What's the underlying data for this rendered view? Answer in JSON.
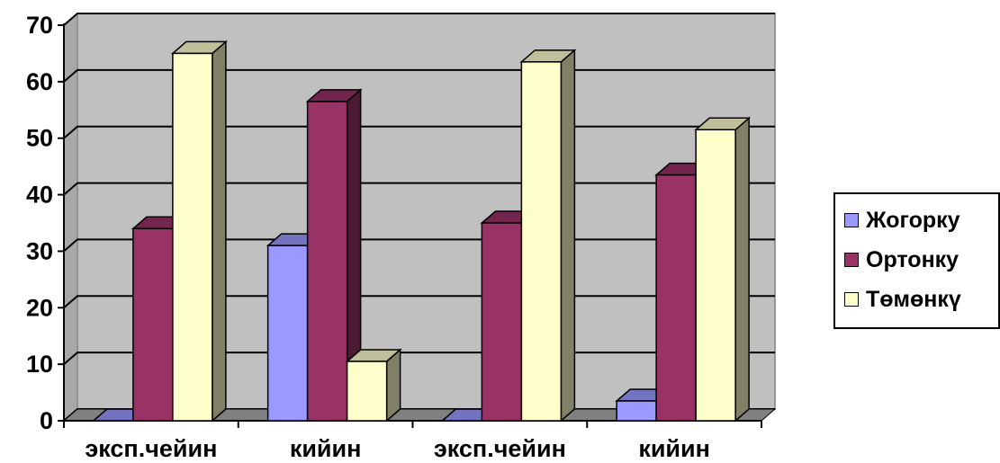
{
  "chart_data": {
    "type": "bar",
    "categories": [
      "эксп.чейин",
      "кийин",
      "эксп.чейин",
      "кийин"
    ],
    "series": [
      {
        "name": "Жогорку",
        "values": [
          0,
          31,
          0,
          3.5
        ],
        "color": "#9999ff"
      },
      {
        "name": "Ортонку",
        "values": [
          34,
          56.5,
          35,
          43.5
        ],
        "color": "#993366"
      },
      {
        "name": "Төмөнкү",
        "values": [
          65,
          10.5,
          63.5,
          51.5
        ],
        "color": "#ffffcc"
      }
    ],
    "ylim": [
      0,
      70
    ],
    "yticks": [
      "0",
      "10",
      "20",
      "30",
      "40",
      "50",
      "60",
      "70"
    ],
    "grid": true,
    "legend_position": "right",
    "wall_color": "#c0c0c0"
  }
}
